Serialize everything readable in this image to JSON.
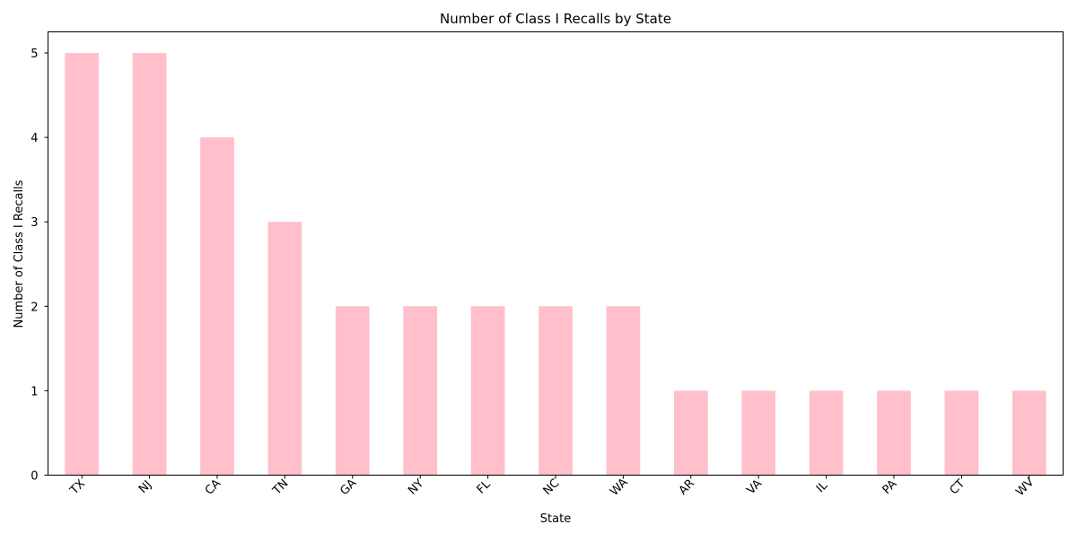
{
  "chart_data": {
    "type": "bar",
    "title": "Number of Class I Recalls by State",
    "xlabel": "State",
    "ylabel": "Number of Class I Recalls",
    "categories": [
      "TX",
      "NJ",
      "CA",
      "TN",
      "GA",
      "NY",
      "FL",
      "NC",
      "WA",
      "AR",
      "VA",
      "IL",
      "PA",
      "CT",
      "WV"
    ],
    "values": [
      5,
      5,
      4,
      3,
      2,
      2,
      2,
      2,
      2,
      1,
      1,
      1,
      1,
      1,
      1
    ],
    "ylim": [
      0,
      5.25
    ],
    "yticks": [
      "0",
      "1",
      "2",
      "3",
      "4",
      "5"
    ],
    "bar_color": "#ffc0cb",
    "grid": false,
    "legend": "none"
  }
}
